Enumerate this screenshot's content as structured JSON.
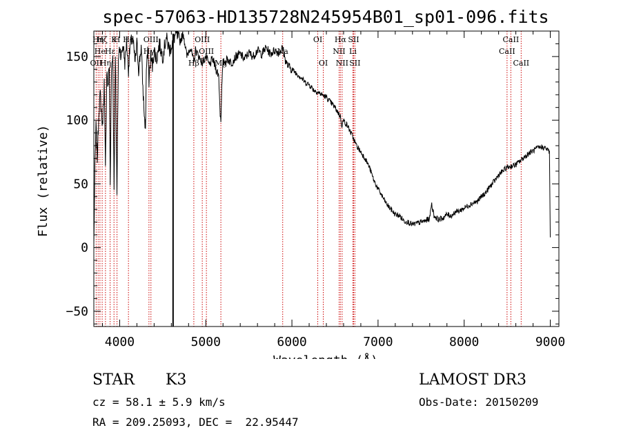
{
  "chart_data": {
    "type": "line",
    "title": "spec-57063-HD135728N245954B01_sp01-096.fits",
    "xlabel": "Wavelength (Å)",
    "ylabel": "Flux (relative)",
    "xlim": [
      3700,
      9100
    ],
    "ylim": [
      -62,
      170
    ],
    "xticks": [
      4000,
      5000,
      6000,
      7000,
      8000,
      9000
    ],
    "yticks": [
      -50,
      0,
      50,
      100,
      150
    ],
    "series": [
      {
        "name": "flux",
        "points": [
          [
            3700,
            2
          ],
          [
            3712,
            60
          ],
          [
            3725,
            95
          ],
          [
            3740,
            70
          ],
          [
            3760,
            110
          ],
          [
            3775,
            120
          ],
          [
            3800,
            95
          ],
          [
            3820,
            130
          ],
          [
            3835,
            60
          ],
          [
            3850,
            140
          ],
          [
            3865,
            125
          ],
          [
            3880,
            145
          ],
          [
            3890,
            50
          ],
          [
            3905,
            140
          ],
          [
            3920,
            150
          ],
          [
            3935,
            45
          ],
          [
            3950,
            155
          ],
          [
            3968,
            40
          ],
          [
            3985,
            148
          ],
          [
            4000,
            158
          ],
          [
            4020,
            150
          ],
          [
            4040,
            160
          ],
          [
            4060,
            145
          ],
          [
            4080,
            162
          ],
          [
            4102,
            140
          ],
          [
            4120,
            158
          ],
          [
            4150,
            165
          ],
          [
            4180,
            145
          ],
          [
            4200,
            160
          ],
          [
            4220,
            140
          ],
          [
            4250,
            158
          ],
          [
            4270,
            125
          ],
          [
            4290,
            100
          ],
          [
            4300,
            95
          ],
          [
            4310,
            140
          ],
          [
            4330,
            155
          ],
          [
            4340,
            130
          ],
          [
            4360,
            150
          ],
          [
            4380,
            142
          ],
          [
            4400,
            155
          ],
          [
            4430,
            148
          ],
          [
            4460,
            160
          ],
          [
            4500,
            150
          ],
          [
            4540,
            165
          ],
          [
            4580,
            155
          ],
          [
            4620,
            162
          ],
          [
            4650,
            168
          ],
          [
            4700,
            162
          ],
          [
            4740,
            168
          ],
          [
            4780,
            150
          ],
          [
            4820,
            158
          ],
          [
            4861,
            145
          ],
          [
            4880,
            155
          ],
          [
            4920,
            150
          ],
          [
            4960,
            145
          ],
          [
            5000,
            150
          ],
          [
            5040,
            143
          ],
          [
            5080,
            148
          ],
          [
            5120,
            140
          ],
          [
            5150,
            135
          ],
          [
            5167,
            105
          ],
          [
            5175,
            100
          ],
          [
            5185,
            125
          ],
          [
            5200,
            145
          ],
          [
            5250,
            148
          ],
          [
            5300,
            145
          ],
          [
            5350,
            150
          ],
          [
            5400,
            152
          ],
          [
            5450,
            148
          ],
          [
            5500,
            153
          ],
          [
            5550,
            150
          ],
          [
            5600,
            155
          ],
          [
            5650,
            152
          ],
          [
            5700,
            157
          ],
          [
            5750,
            152
          ],
          [
            5800,
            155
          ],
          [
            5850,
            153
          ],
          [
            5893,
            157
          ],
          [
            5920,
            148
          ],
          [
            5950,
            143
          ],
          [
            6000,
            140
          ],
          [
            6050,
            137
          ],
          [
            6100,
            134
          ],
          [
            6150,
            130
          ],
          [
            6200,
            128
          ],
          [
            6250,
            124
          ],
          [
            6300,
            122
          ],
          [
            6350,
            120
          ],
          [
            6400,
            118
          ],
          [
            6450,
            114
          ],
          [
            6500,
            110
          ],
          [
            6563,
            103
          ],
          [
            6580,
            96
          ],
          [
            6600,
            100
          ],
          [
            6650,
            95
          ],
          [
            6700,
            88
          ],
          [
            6750,
            80
          ],
          [
            6800,
            75
          ],
          [
            6850,
            70
          ],
          [
            6900,
            63
          ],
          [
            6950,
            53
          ],
          [
            7000,
            46
          ],
          [
            7050,
            40
          ],
          [
            7100,
            34
          ],
          [
            7150,
            30
          ],
          [
            7200,
            26
          ],
          [
            7250,
            25
          ],
          [
            7300,
            21
          ],
          [
            7350,
            20
          ],
          [
            7400,
            18
          ],
          [
            7450,
            19
          ],
          [
            7500,
            20
          ],
          [
            7550,
            21
          ],
          [
            7600,
            23
          ],
          [
            7620,
            35
          ],
          [
            7650,
            25
          ],
          [
            7700,
            22
          ],
          [
            7750,
            23
          ],
          [
            7800,
            26
          ],
          [
            7850,
            25
          ],
          [
            7900,
            28
          ],
          [
            7950,
            29
          ],
          [
            8000,
            31
          ],
          [
            8050,
            33
          ],
          [
            8100,
            35
          ],
          [
            8150,
            36
          ],
          [
            8200,
            40
          ],
          [
            8250,
            43
          ],
          [
            8300,
            48
          ],
          [
            8350,
            52
          ],
          [
            8400,
            57
          ],
          [
            8450,
            60
          ],
          [
            8500,
            63
          ],
          [
            8550,
            64
          ],
          [
            8600,
            65
          ],
          [
            8650,
            68
          ],
          [
            8700,
            71
          ],
          [
            8750,
            74
          ],
          [
            8800,
            76
          ],
          [
            8850,
            78
          ],
          [
            8900,
            79
          ],
          [
            8950,
            78
          ],
          [
            8990,
            75
          ],
          [
            9000,
            8
          ]
        ]
      }
    ],
    "spike": {
      "x": 4620,
      "y_from": -62,
      "y_to": 168
    },
    "lines": [
      {
        "wl": 3727,
        "label": "OII",
        "row": 2
      },
      {
        "wl": 3750,
        "label": "Hη",
        "row": 0
      },
      {
        "wl": 3771,
        "label": "He",
        "row": 1
      },
      {
        "wl": 3797,
        "label": "Hζ",
        "row": 0
      },
      {
        "wl": 3835,
        "label": "Hη",
        "row": 2
      },
      {
        "wl": 3889,
        "label": "Hε",
        "row": 1
      },
      {
        "wl": 3934,
        "label": "K",
        "row": 0
      },
      {
        "wl": 3969,
        "label": "H",
        "row": 0
      },
      {
        "wl": 4102,
        "label": "Hδ",
        "row": 0
      },
      {
        "wl": 4340,
        "label": "Hγ",
        "row": 1
      },
      {
        "wl": 4363,
        "label": "OIII",
        "row": 0
      },
      {
        "wl": 4861,
        "label": "Hβ",
        "row": 2
      },
      {
        "wl": 4959,
        "label": "OIII",
        "row": 0
      },
      {
        "wl": 5007,
        "label": "OIII",
        "row": 1
      },
      {
        "wl": 5175,
        "label": "Mg",
        "row": 2
      },
      {
        "wl": 5893,
        "label": "Na",
        "row": 1
      },
      {
        "wl": 6300,
        "label": "OI",
        "row": 0
      },
      {
        "wl": 6364,
        "label": "OI",
        "row": 2
      },
      {
        "wl": 6548,
        "label": "NII",
        "row": 1
      },
      {
        "wl": 6563,
        "label": "Hα",
        "row": 0
      },
      {
        "wl": 6583,
        "label": "NII",
        "row": 2
      },
      {
        "wl": 6708,
        "label": "Li",
        "row": 1
      },
      {
        "wl": 6716,
        "label": "SII",
        "row": 0
      },
      {
        "wl": 6731,
        "label": "SII",
        "row": 2
      },
      {
        "wl": 8498,
        "label": "CaII",
        "row": 1
      },
      {
        "wl": 8542,
        "label": "CaII",
        "row": 0
      },
      {
        "wl": 8662,
        "label": "CaII",
        "row": 2
      }
    ]
  },
  "info": {
    "class": "STAR",
    "subclass": "K3",
    "survey": "LAMOST DR3",
    "cz": "cz = 58.1 ± 5.9 km/s",
    "obs_date": "Obs-Date: 20150209",
    "radec": "RA = 209.25093, DEC =  22.95447"
  },
  "colors": {
    "axis": "#000000",
    "spectrum": "#000000",
    "line_marker": "#cc0000"
  }
}
